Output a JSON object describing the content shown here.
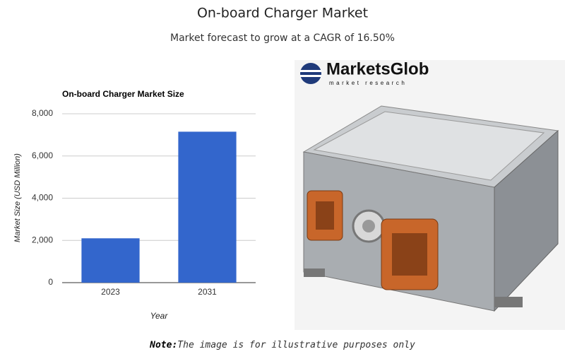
{
  "header": {
    "title": "On-board Charger Market",
    "subtitle": "Market forecast to grow at a CAGR of 16.50%"
  },
  "chart_data": {
    "type": "bar",
    "title": "On-board Charger Market Size",
    "categories": [
      "2023",
      "2031"
    ],
    "values": [
      2100,
      7150
    ],
    "color": "#3366cc",
    "x_label": "Year",
    "y_label": "Market Size (USD Million)",
    "ylim": [
      0,
      8000
    ],
    "yticks": [
      0,
      {
        "value": 2000,
        "label": "2,000"
      },
      {
        "value": 4000,
        "label": "4,000"
      },
      {
        "value": 6000,
        "label": "6,000"
      },
      {
        "value": 8000,
        "label": "8,000"
      }
    ],
    "grid": true
  },
  "logo": {
    "name": "MarketsGlob",
    "tagline": "market research"
  },
  "note": {
    "label": "Note:",
    "text": "The image is for illustrative purposes only"
  }
}
